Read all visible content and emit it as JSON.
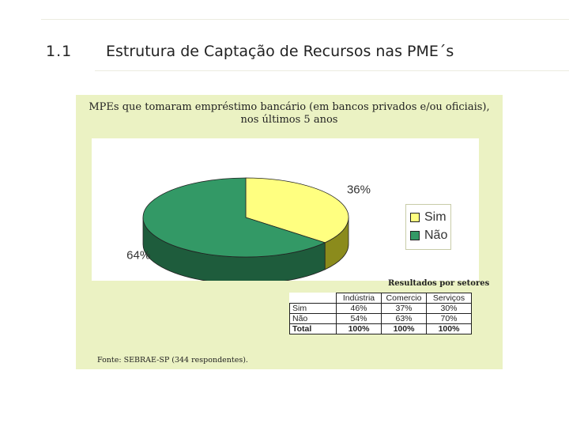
{
  "slide": {
    "number": "1.1",
    "title": "Estrutura de Captação de Recursos nas PME´s"
  },
  "chart_data": {
    "type": "pie",
    "title_line1": "MPEs que tomaram empréstimo bancário (em bancos privados e/ou oficiais),",
    "title_line2": "nos últimos 5 anos",
    "slices": [
      {
        "name": "Sim",
        "value": 36,
        "label": "36%",
        "color": "#ffff80"
      },
      {
        "name": "Não",
        "value": 64,
        "label": "64%",
        "color": "#339966"
      }
    ],
    "legend_placement": "right",
    "source": "Fonte: SEBRAE-SP (344 respondentes)."
  },
  "sector_table": {
    "caption": "Resultados por setores",
    "columns": [
      "Indústria",
      "Comercio",
      "Serviços"
    ],
    "rows": [
      {
        "label": "Sim",
        "values": [
          "46%",
          "37%",
          "30%"
        ]
      },
      {
        "label": "Não",
        "values": [
          "54%",
          "63%",
          "70%"
        ]
      },
      {
        "label": "Total",
        "values": [
          "100%",
          "100%",
          "100%"
        ]
      }
    ]
  }
}
